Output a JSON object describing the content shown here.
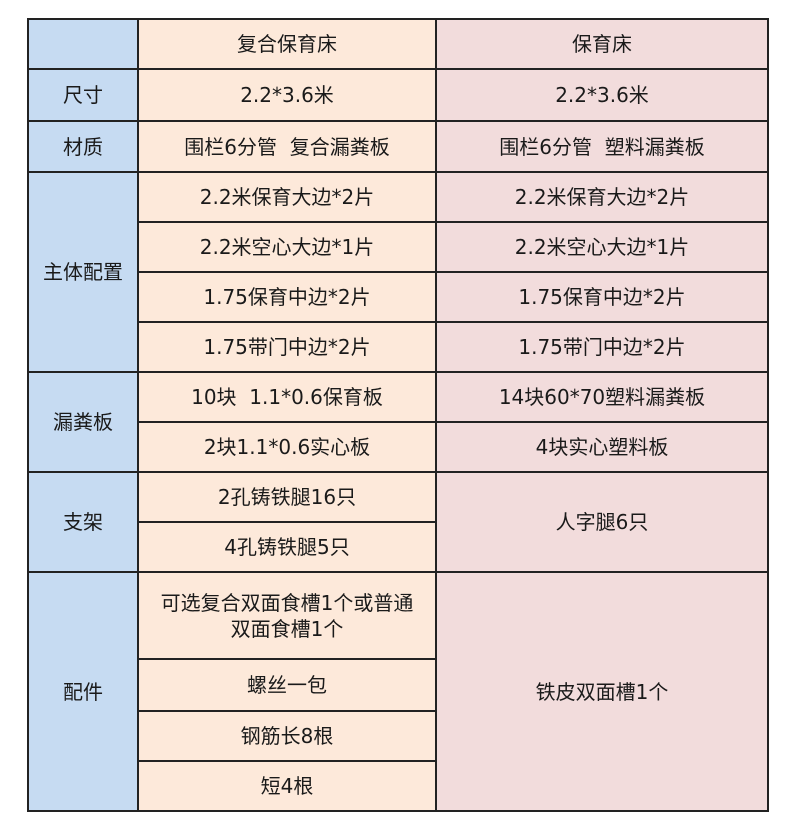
{
  "colors": {
    "label_column": "#c6dbf2",
    "column1": "#fde9da",
    "column2": "#f2dcdc"
  },
  "header": {
    "corner": "",
    "col1": "复合保育床",
    "col2": "保育床"
  },
  "rows": {
    "size": {
      "label": "尺寸",
      "col1": "2.2*3.6米",
      "col2": "2.2*3.6米"
    },
    "material": {
      "label": "材质",
      "col1": "围栏6分管  复合漏粪板",
      "col2": "围栏6分管  塑料漏粪板"
    },
    "main_config": {
      "label": "主体配置",
      "col1": [
        "2.2米保育大边*2片",
        "2.2米空心大边*1片",
        "1.75保育中边*2片",
        "1.75带门中边*2片"
      ],
      "col2": [
        "2.2米保育大边*2片",
        "2.2米空心大边*1片",
        "1.75保育中边*2片",
        "1.75带门中边*2片"
      ]
    },
    "floor": {
      "label": "漏粪板",
      "col1": [
        "10块  1.1*0.6保育板",
        "2块1.1*0.6实心板"
      ],
      "col2": [
        "14块60*70塑料漏粪板",
        "4块实心塑料板"
      ]
    },
    "stand": {
      "label": "支架",
      "col1": [
        "2孔铸铁腿16只",
        "4孔铸铁腿5只"
      ],
      "col2": "人字腿6只"
    },
    "accessories": {
      "label": "配件",
      "col1": [
        "可选复合双面食槽1个或普通双面食槽1个",
        "螺丝一包",
        "钢筋长8根",
        "短4根"
      ],
      "col2": "铁皮双面槽1个"
    }
  }
}
